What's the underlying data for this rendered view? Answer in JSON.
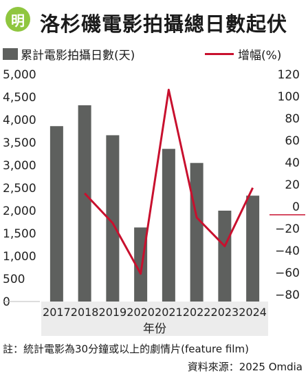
{
  "header": {
    "logo_text": "明",
    "title": "洛杉磯電影拍攝總日數起伏"
  },
  "colors": {
    "bar": "#5e605e",
    "line": "#c8102e",
    "axis": "#222222",
    "xband": "#ececec",
    "logo": "#8fc63f"
  },
  "chart_data": {
    "type": "bar",
    "categories": [
      "2017",
      "2018",
      "2019",
      "2020",
      "2021",
      "2022",
      "2023",
      "2024"
    ],
    "series": [
      {
        "name": "累計電影拍攝日數(天)",
        "type": "bar",
        "axis": "left",
        "values": [
          3860,
          4320,
          3660,
          1630,
          3360,
          3050,
          2000,
          2330
        ]
      },
      {
        "name": "增幅(%)",
        "type": "line",
        "axis": "right",
        "values": [
          null,
          12,
          -15,
          -61,
          106,
          -10,
          -36,
          17
        ]
      }
    ],
    "left_axis": {
      "ylim": [
        0,
        5000
      ],
      "ticks": [
        {
          "v": 0,
          "label": "0"
        },
        {
          "v": 500,
          "label": "500"
        },
        {
          "v": 1000,
          "label": "1,000"
        },
        {
          "v": 1500,
          "label": "1,500"
        },
        {
          "v": 2000,
          "label": "2,000"
        },
        {
          "v": 2500,
          "label": "2,500"
        },
        {
          "v": 3000,
          "label": "3,000"
        },
        {
          "v": 3500,
          "label": "3,500"
        },
        {
          "v": 4000,
          "label": "4,000"
        },
        {
          "v": 4500,
          "label": "4,500"
        },
        {
          "v": 5000,
          "label": "5,000"
        }
      ]
    },
    "right_axis": {
      "ylim": [
        -80,
        120
      ],
      "ticks": [
        {
          "v": 120,
          "label": "120"
        },
        {
          "v": 100,
          "label": "100"
        },
        {
          "v": 80,
          "label": "80"
        },
        {
          "v": 60,
          "label": "60"
        },
        {
          "v": 40,
          "label": "40"
        },
        {
          "v": 20,
          "label": "20"
        },
        {
          "v": 0,
          "label": "0"
        },
        {
          "v": -20,
          "label": "−20"
        },
        {
          "v": -40,
          "label": "−40"
        },
        {
          "v": -60,
          "label": "−60"
        },
        {
          "v": -80,
          "label": "−80"
        }
      ]
    },
    "xlabel": "年份",
    "legend": "top"
  },
  "footer": {
    "note": "註：統計電影為30分鐘或以上的劇情片(feature film)",
    "source": "資料來源：2025 Omdia"
  }
}
